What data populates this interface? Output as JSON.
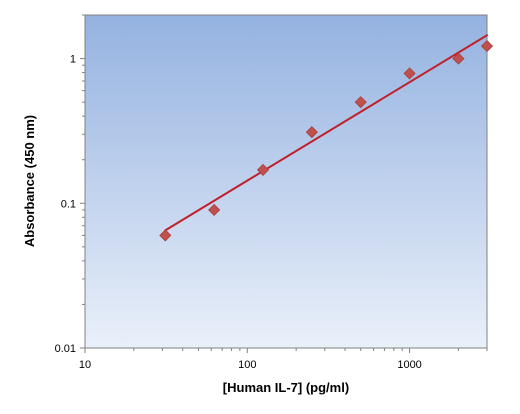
{
  "chart_data": {
    "type": "scatter",
    "title": "",
    "xlabel": "[Human IL-7] (pg/ml)",
    "ylabel": "Absorbance (450 nm)",
    "x_scale": "log",
    "y_scale": "log",
    "xlim": [
      10,
      3000
    ],
    "ylim": [
      0.01,
      2
    ],
    "x_ticks": [
      {
        "value": 10,
        "label": "10"
      },
      {
        "value": 100,
        "label": "100"
      },
      {
        "value": 1000,
        "label": "1000"
      }
    ],
    "y_ticks": [
      {
        "value": 0.01,
        "label": "0.01"
      },
      {
        "value": 0.1,
        "label": "0.1"
      },
      {
        "value": 1,
        "label": "1"
      }
    ],
    "grid": false,
    "legend": "none",
    "colors": {
      "marker": "#c0504d",
      "marker_edge": "#a5403d",
      "fit_line": "#c0202a",
      "plot_bg_top": "#94b2e0",
      "plot_bg_bottom": "#eaf0fa",
      "axis": "#808080"
    },
    "series": [
      {
        "kind": "points",
        "marker": "diamond",
        "x": [
          31.25,
          62.5,
          125,
          250,
          500,
          1000,
          2000,
          3000
        ],
        "y": [
          0.06,
          0.09,
          0.17,
          0.31,
          0.5,
          0.79,
          1.0,
          1.22
        ]
      },
      {
        "kind": "fit",
        "x": [
          31.25,
          3000
        ],
        "y": [
          0.065,
          1.45
        ]
      }
    ]
  }
}
